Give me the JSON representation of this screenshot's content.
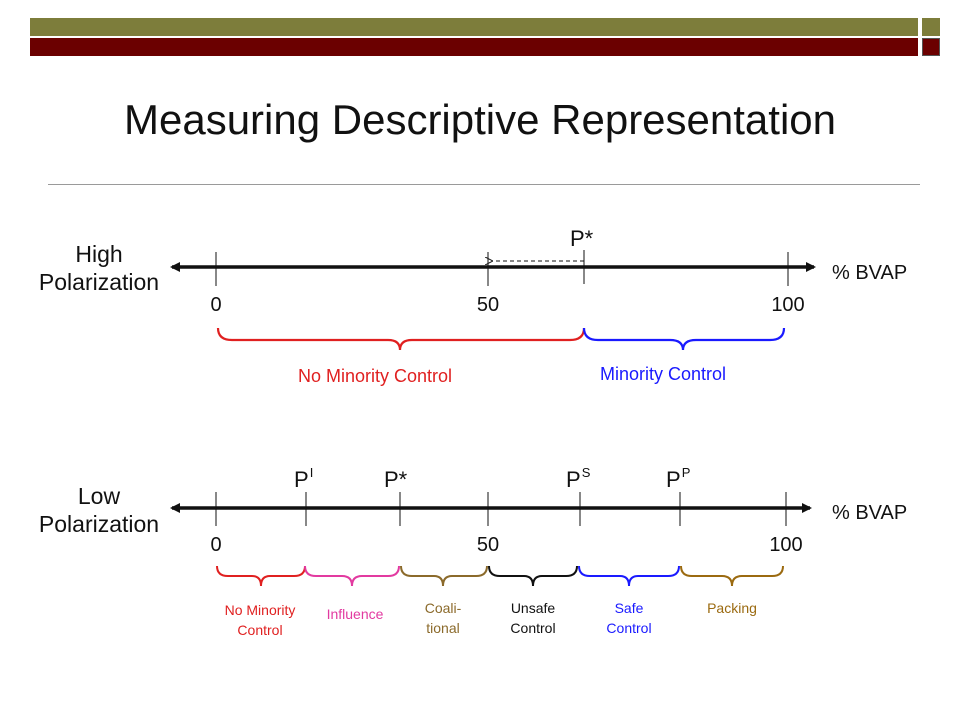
{
  "title": "Measuring Descriptive Representation",
  "high": {
    "label_line1": "High",
    "label_line2": "Polarization",
    "axis_label": "% BVAP",
    "ticks": [
      "0",
      "50",
      "100"
    ],
    "pstar": "P*",
    "regions": {
      "no_control": "No Minority Control",
      "control": "Minority Control"
    }
  },
  "low": {
    "label_line1": "Low",
    "label_line2": "Polarization",
    "axis_label": "% BVAP",
    "ticks": [
      "0",
      "50",
      "100"
    ],
    "markers": {
      "pi": {
        "main": "P",
        "sup": "I"
      },
      "pstar": "P*",
      "ps": {
        "main": "P",
        "sup": "S"
      },
      "pp": {
        "main": "P",
        "sup": "P"
      }
    },
    "regions": {
      "no_control_1": "No Minority",
      "no_control_2": "Control",
      "influence": "Influence",
      "coalitional_1": "Coali-",
      "coalitional_2": "tional",
      "unsafe_1": "Unsafe",
      "unsafe_2": "Control",
      "safe_1": "Safe",
      "safe_2": "Control",
      "packing": "Packing"
    }
  },
  "colors": {
    "red": "#e02020",
    "blue": "#1a1aff",
    "pink": "#e23aa0",
    "brown": "#8b6a2b",
    "black": "#111111",
    "gold": "#9b6a10"
  }
}
